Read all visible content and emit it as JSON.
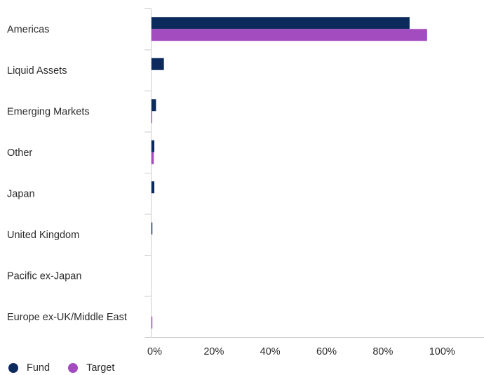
{
  "chart_data": {
    "type": "bar",
    "orientation": "horizontal",
    "categories": [
      "Americas",
      "Liquid Assets",
      "Emerging Markets",
      "Other",
      "Japan",
      "United Kingdom",
      "Pacific ex-Japan",
      "Europe ex-UK/Middle East"
    ],
    "series": [
      {
        "name": "Fund",
        "color": "#0d2a5c",
        "values": [
          91.6,
          4.4,
          1.6,
          1.0,
          1.0,
          0.3,
          0.0,
          0.0
        ]
      },
      {
        "name": "Target",
        "color": "#a24cc0",
        "values": [
          97.8,
          0.0,
          0.2,
          0.8,
          0.0,
          0.0,
          0.0,
          0.3
        ]
      }
    ],
    "xlim": [
      0,
      118
    ],
    "xticks": [
      0,
      20,
      40,
      60,
      80,
      100
    ],
    "xtick_labels": [
      "0%",
      "20%",
      "40%",
      "60%",
      "80%",
      "100%"
    ],
    "grid": false,
    "legend_position": "bottom-left"
  }
}
